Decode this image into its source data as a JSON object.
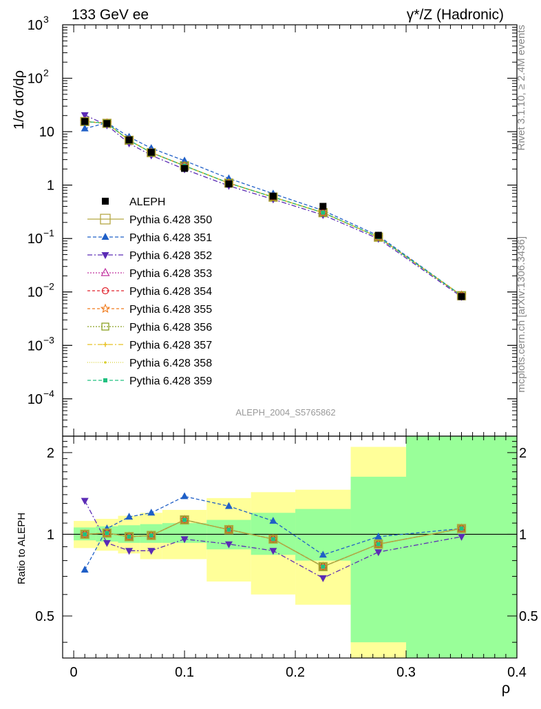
{
  "header": {
    "left": "133 GeV ee",
    "right": "γ*/Z (Hadronic)"
  },
  "side_text": {
    "rivet": "Rivet 3.1.10, ≥ 2.4M events",
    "mcplots": "mcplots.cern.ch [arXiv:1306.3436]"
  },
  "analysis_label": "ALEPH_2004_S5765862",
  "main_ylabel": "1/σ  dσ/dρ",
  "ratio_ylabel": "Ratio to ALEPH",
  "xlabel": "ρ",
  "colors": {
    "data": "#000000",
    "s350": "#b5a642",
    "s351": "#1f5fc7",
    "s352": "#5b2bb5",
    "s353": "#c0309f",
    "s354": "#e0202a",
    "s355": "#f07a1a",
    "s356": "#8aa020",
    "s357": "#e8c020",
    "s358": "#d8d030",
    "s359": "#20c080",
    "band_inner": "#99ff99",
    "band_outer": "#ffff99"
  },
  "chart_data": [
    {
      "type": "scatter",
      "panel": "main",
      "yscale": "log",
      "ylabel": "1/σ  dσ/dρ",
      "xlim": [
        -0.01,
        0.4
      ],
      "ylim": [
        2e-05,
        1000
      ],
      "yticks": [
        {
          "value": 0.0001,
          "mant": "10",
          "exp": "−4"
        },
        {
          "value": 0.001,
          "mant": "10",
          "exp": "−3"
        },
        {
          "value": 0.01,
          "mant": "10",
          "exp": "−2"
        },
        {
          "value": 0.1,
          "mant": "10",
          "exp": "−1"
        },
        {
          "value": 1,
          "mant": "1",
          "exp": ""
        },
        {
          "value": 10,
          "mant": "10",
          "exp": ""
        },
        {
          "value": 100,
          "mant": "10",
          "exp": "2"
        },
        {
          "value": 1000,
          "mant": "10",
          "exp": "3"
        }
      ],
      "legend_position": "left-middle",
      "x": [
        0.01,
        0.03,
        0.05,
        0.07,
        0.1,
        0.14,
        0.18,
        0.225,
        0.275,
        0.35
      ],
      "data_series": {
        "name": "ALEPH",
        "values": [
          15.5,
          14.2,
          7.0,
          4.1,
          2.05,
          1.05,
          0.62,
          0.4,
          0.115,
          0.0082
        ]
      },
      "series": [
        {
          "name": "Pythia 6.428 350",
          "key": "s350",
          "marker": "square-open",
          "dash": "",
          "values": [
            15.5,
            14.3,
            6.9,
            4.05,
            2.3,
            1.09,
            0.595,
            0.305,
            0.106,
            0.0085
          ]
        },
        {
          "name": "Pythia 6.428 351",
          "key": "s351",
          "marker": "triangle-up",
          "dash": "5,3",
          "values": [
            11.4,
            14.7,
            7.95,
            4.9,
            2.86,
            1.33,
            0.69,
            0.335,
            0.113,
            0.0086
          ]
        },
        {
          "name": "Pythia 6.428 352",
          "key": "s352",
          "marker": "triangle-down",
          "dash": "7,3,2,3",
          "values": [
            20.5,
            13.2,
            6.05,
            3.6,
            1.98,
            0.97,
            0.542,
            0.276,
            0.099,
            0.0081
          ]
        },
        {
          "name": "Pythia 6.428 353",
          "key": "s353",
          "marker": "triangle-open",
          "dash": "2,2",
          "values": [
            15.5,
            14.3,
            6.9,
            4.05,
            2.3,
            1.09,
            0.595,
            0.305,
            0.106,
            0.0086
          ]
        },
        {
          "name": "Pythia 6.428 354",
          "key": "s354",
          "marker": "circle-open",
          "dash": "4,3",
          "values": [
            15.5,
            14.3,
            6.9,
            4.05,
            2.3,
            1.09,
            0.595,
            0.305,
            0.106,
            0.0086
          ]
        },
        {
          "name": "Pythia 6.428 355",
          "key": "s355",
          "marker": "star-open",
          "dash": "4,3",
          "values": [
            15.5,
            14.3,
            6.9,
            4.05,
            2.3,
            1.09,
            0.595,
            0.305,
            0.106,
            0.0086
          ]
        },
        {
          "name": "Pythia 6.428 356",
          "key": "s356",
          "marker": "square-open",
          "dash": "2,2",
          "values": [
            15.5,
            14.3,
            6.9,
            4.05,
            2.3,
            1.09,
            0.595,
            0.305,
            0.106,
            0.0086
          ]
        },
        {
          "name": "Pythia 6.428 357",
          "key": "s357",
          "marker": "cross",
          "dash": "7,3,2,3",
          "values": [
            15.5,
            14.3,
            6.9,
            4.05,
            2.3,
            1.09,
            0.595,
            0.305,
            0.106,
            0.0086
          ]
        },
        {
          "name": "Pythia 6.428 358",
          "key": "s358",
          "marker": "dot",
          "dash": "1,2",
          "values": [
            15.5,
            14.3,
            6.9,
            4.05,
            2.3,
            1.09,
            0.595,
            0.305,
            0.106,
            0.0086
          ]
        },
        {
          "name": "Pythia 6.428 359",
          "key": "s359",
          "marker": "square-filled",
          "dash": "5,3",
          "values": [
            15.5,
            14.3,
            6.9,
            4.05,
            2.3,
            1.09,
            0.595,
            0.305,
            0.106,
            0.0086
          ]
        }
      ]
    },
    {
      "type": "line",
      "panel": "ratio",
      "yscale": "log",
      "ylabel": "Ratio to ALEPH",
      "xlabel": "ρ",
      "xlim": [
        -0.01,
        0.4
      ],
      "ylim": [
        0.35,
        2.3
      ],
      "xticks": [
        0,
        0.1,
        0.2,
        0.3,
        0.4
      ],
      "xtick_labels": [
        "0",
        "0.1",
        "0.2",
        "0.3",
        "0.4"
      ],
      "yticks": [
        0.5,
        1,
        2
      ],
      "ytick_labels": [
        "0.5",
        "1",
        "2"
      ],
      "bins": [
        {
          "lo": 0.0,
          "hi": 0.02,
          "inner": [
            0.95,
            1.06
          ],
          "outer": [
            0.89,
            1.12
          ]
        },
        {
          "lo": 0.02,
          "hi": 0.04,
          "inner": [
            0.94,
            1.07
          ],
          "outer": [
            0.87,
            1.14
          ]
        },
        {
          "lo": 0.04,
          "hi": 0.06,
          "inner": [
            0.93,
            1.08
          ],
          "outer": [
            0.85,
            1.17
          ]
        },
        {
          "lo": 0.06,
          "hi": 0.08,
          "inner": [
            0.93,
            1.09
          ],
          "outer": [
            0.81,
            1.2
          ]
        },
        {
          "lo": 0.08,
          "hi": 0.12,
          "inner": [
            0.93,
            1.1
          ],
          "outer": [
            0.81,
            1.23
          ]
        },
        {
          "lo": 0.12,
          "hi": 0.16,
          "inner": [
            0.88,
            1.13
          ],
          "outer": [
            0.67,
            1.36
          ]
        },
        {
          "lo": 0.16,
          "hi": 0.2,
          "inner": [
            0.84,
            1.2
          ],
          "outer": [
            0.6,
            1.43
          ]
        },
        {
          "lo": 0.2,
          "hi": 0.25,
          "inner": [
            0.8,
            1.24
          ],
          "outer": [
            0.55,
            1.46
          ]
        },
        {
          "lo": 0.25,
          "hi": 0.3,
          "inner": [
            0.4,
            1.63
          ],
          "outer": [
            0.35,
            2.1
          ]
        },
        {
          "lo": 0.3,
          "hi": 0.4,
          "inner": [
            0.35,
            2.3
          ],
          "outer": [
            0.35,
            2.3
          ]
        }
      ],
      "x": [
        0.01,
        0.03,
        0.05,
        0.07,
        0.1,
        0.14,
        0.18,
        0.225,
        0.275,
        0.35
      ],
      "series": [
        {
          "key": "s351",
          "marker": "triangle-up",
          "dash": "5,3",
          "values": [
            0.74,
            1.05,
            1.16,
            1.2,
            1.38,
            1.27,
            1.12,
            0.84,
            0.98,
            1.05
          ]
        },
        {
          "key": "s352",
          "marker": "triangle-down",
          "dash": "7,3,2,3",
          "values": [
            1.33,
            0.93,
            0.87,
            0.87,
            0.96,
            0.92,
            0.87,
            0.69,
            0.86,
            0.98
          ]
        },
        {
          "key": "s353",
          "marker": "triangle-open",
          "dash": "2,2",
          "values": [
            1.0,
            1.01,
            0.98,
            0.99,
            1.13,
            1.04,
            0.96,
            0.76,
            0.92,
            1.05
          ]
        },
        {
          "key": "s354",
          "marker": "circle-open",
          "dash": "4,3",
          "values": [
            1.0,
            1.01,
            0.98,
            0.99,
            1.13,
            1.04,
            0.96,
            0.76,
            0.92,
            1.05
          ]
        },
        {
          "key": "s355",
          "marker": "star-open",
          "dash": "4,3",
          "values": [
            1.0,
            1.01,
            0.98,
            0.99,
            1.13,
            1.04,
            0.96,
            0.76,
            0.92,
            1.05
          ]
        },
        {
          "key": "s356",
          "marker": "square-open",
          "dash": "2,2",
          "values": [
            1.0,
            1.01,
            0.98,
            0.99,
            1.13,
            1.04,
            0.96,
            0.76,
            0.92,
            1.05
          ]
        },
        {
          "key": "s357",
          "marker": "cross",
          "dash": "7,3,2,3",
          "values": [
            1.0,
            1.01,
            0.98,
            0.99,
            1.13,
            1.04,
            0.96,
            0.76,
            0.92,
            1.05
          ]
        },
        {
          "key": "s358",
          "marker": "dot",
          "dash": "1,2",
          "values": [
            1.0,
            1.01,
            0.98,
            0.99,
            1.13,
            1.04,
            0.96,
            0.76,
            0.92,
            1.05
          ]
        },
        {
          "key": "s359",
          "marker": "square-filled",
          "dash": "5,3",
          "values": [
            1.0,
            1.01,
            0.98,
            0.99,
            1.13,
            1.04,
            0.96,
            0.76,
            0.92,
            1.05
          ]
        },
        {
          "key": "s350",
          "marker": "square-open",
          "dash": "",
          "values": [
            1.0,
            1.01,
            0.98,
            0.99,
            1.13,
            1.04,
            0.96,
            0.76,
            0.92,
            1.05
          ]
        }
      ]
    }
  ]
}
